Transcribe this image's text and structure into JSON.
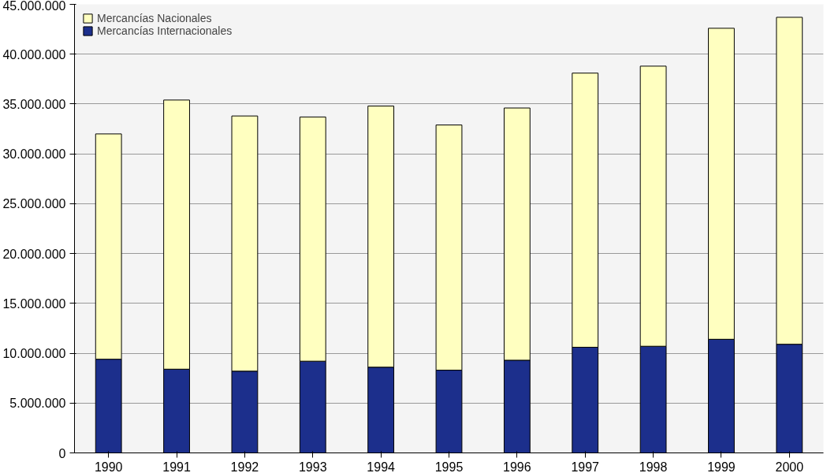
{
  "chart_data": {
    "type": "bar",
    "stacked": true,
    "categories": [
      "1990",
      "1991",
      "1992",
      "1993",
      "1994",
      "1995",
      "1996",
      "1997",
      "1998",
      "1999",
      "2000"
    ],
    "series": [
      {
        "name": "Mercancías Internacionales",
        "color": "#1c2f8c",
        "values": [
          9400000,
          8400000,
          8200000,
          9200000,
          8600000,
          8300000,
          9300000,
          10600000,
          10700000,
          11400000,
          10900000
        ]
      },
      {
        "name": "Mercancías Nacionales",
        "color": "#ffffc0",
        "values": [
          22600000,
          27000000,
          25600000,
          24500000,
          26200000,
          24600000,
          25300000,
          27500000,
          28100000,
          31200000,
          32800000
        ]
      }
    ],
    "ylim": [
      0,
      45000000
    ],
    "yticks": [
      0,
      {
        "value": 5000000,
        "label": "5.000.000"
      },
      {
        "value": 10000000,
        "label": "10.000.000"
      },
      {
        "value": 15000000,
        "label": "15.000.000"
      },
      {
        "value": 20000000,
        "label": "20.000.000"
      },
      {
        "value": 25000000,
        "label": "25.000.000"
      },
      {
        "value": 30000000,
        "label": "30.000.000"
      },
      {
        "value": 35000000,
        "label": "35.000.000"
      },
      {
        "value": 40000000,
        "label": "40.000.000"
      },
      {
        "value": 45000000,
        "label": "45.000.000"
      }
    ],
    "grid": "y",
    "legend": "top left"
  }
}
